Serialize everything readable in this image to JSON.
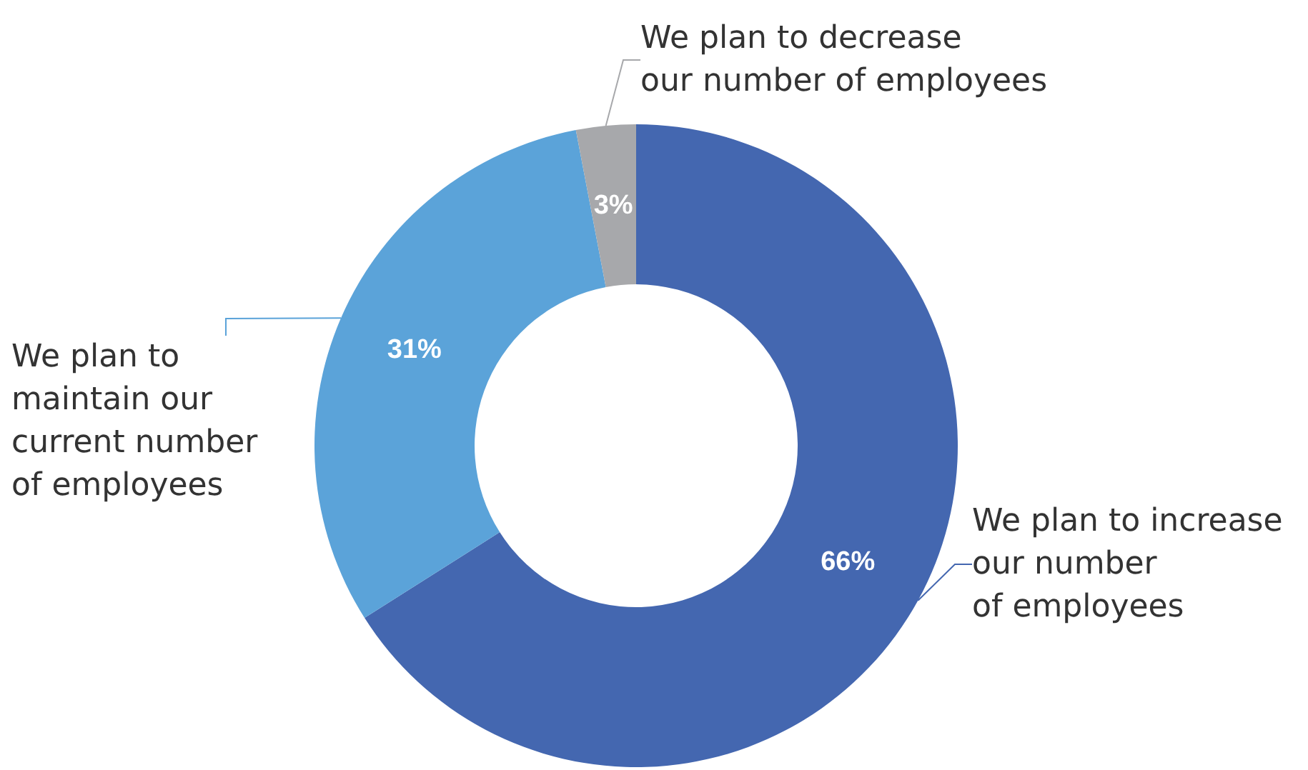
{
  "chart_data": {
    "type": "donut",
    "categories": [
      "We plan to increase\nour number\nof employees",
      "We plan to\nmaintain our\ncurrent number\nof employees",
      "We plan to decrease\nour number of employees"
    ],
    "values": [
      66,
      31,
      3
    ],
    "colors": [
      "#4467b0",
      "#5ba3d9",
      "#a7a8ab"
    ],
    "value_labels": [
      "66%",
      "31%",
      "3%"
    ],
    "legend": false
  }
}
